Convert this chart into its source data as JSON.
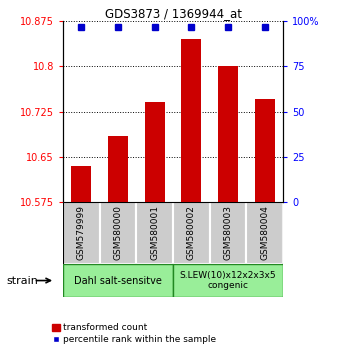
{
  "title": "GDS3873 / 1369944_at",
  "samples": [
    "GSM579999",
    "GSM580000",
    "GSM580001",
    "GSM580002",
    "GSM580003",
    "GSM580004"
  ],
  "bar_values": [
    10.635,
    10.685,
    10.74,
    10.845,
    10.8,
    10.745
  ],
  "percentile_values": [
    97,
    97,
    97,
    97,
    97,
    97
  ],
  "bar_color": "#cc0000",
  "percentile_color": "#0000cc",
  "ylim_left": [
    10.575,
    10.875
  ],
  "ylim_right": [
    0,
    100
  ],
  "yticks_left": [
    10.575,
    10.65,
    10.725,
    10.8,
    10.875
  ],
  "ytick_labels_left": [
    "10.575",
    "10.65",
    "10.725",
    "10.8",
    "10.875"
  ],
  "yticks_right": [
    0,
    25,
    50,
    75,
    100
  ],
  "ytick_labels_right": [
    "0",
    "25",
    "50",
    "75",
    "100%"
  ],
  "group1_label": "Dahl salt-sensitve",
  "group2_label": "S.LEW(10)x12x2x3x5\ncongenic",
  "group1_indices": [
    0,
    1,
    2
  ],
  "group2_indices": [
    3,
    4,
    5
  ],
  "group1_color": "#99ee99",
  "group2_color": "#99ee99",
  "group_edge_color": "#228822",
  "sample_box_color": "#cccccc",
  "xlabel_strain": "strain",
  "legend_bar": "transformed count",
  "legend_pct": "percentile rank within the sample",
  "bar_bottom": 10.575,
  "title_fontsize": 8.5,
  "tick_fontsize": 7,
  "label_fontsize": 6.5,
  "legend_fontsize": 6.5
}
